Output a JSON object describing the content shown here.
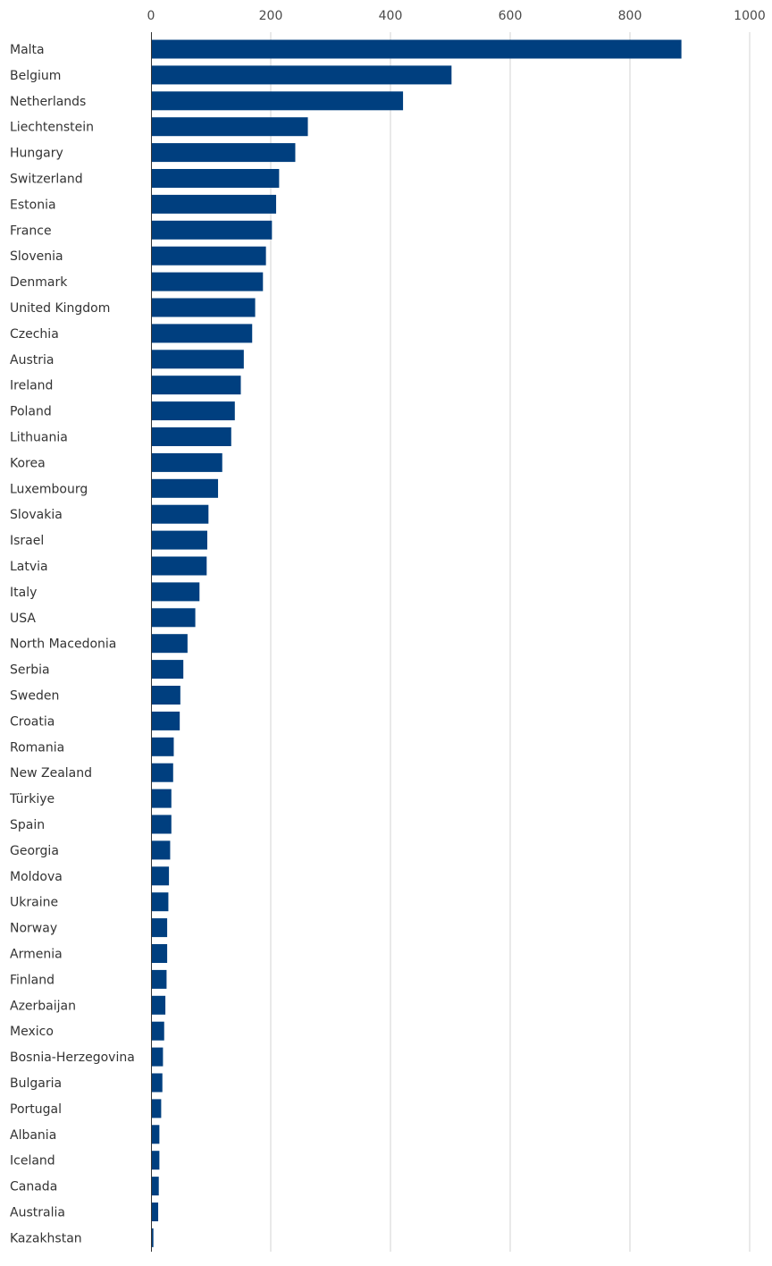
{
  "chart_data": {
    "type": "bar",
    "orientation": "horizontal",
    "title": "",
    "xlabel": "",
    "ylabel": "",
    "xlim": [
      0,
      1000
    ],
    "ticks": [
      "0",
      "200",
      "400",
      "600",
      "800",
      "1000"
    ],
    "tick_values": [
      0,
      200,
      400,
      600,
      800,
      1000
    ],
    "grid": true,
    "bar_color": "#003f7f",
    "categories": [
      "Malta",
      "Belgium",
      "Netherlands",
      "Liechtenstein",
      "Hungary",
      "Switzerland",
      "Estonia",
      "France",
      "Slovenia",
      "Denmark",
      "United Kingdom",
      "Czechia",
      "Austria",
      "Ireland",
      "Poland",
      "Lithuania",
      "Korea",
      "Luxembourg",
      "Slovakia",
      "Israel",
      "Latvia",
      "Italy",
      "USA",
      "North Macedonia",
      "Serbia",
      "Sweden",
      "Croatia",
      "Romania",
      "New Zealand",
      "Türkiye",
      "Spain",
      "Georgia",
      "Moldova",
      "Ukraine",
      "Norway",
      "Armenia",
      "Finland",
      "Azerbaijan",
      "Mexico",
      "Bosnia-Herzegovina",
      "Bulgaria",
      "Portugal",
      "Albania",
      "Iceland",
      "Canada",
      "Australia",
      "Kazakhstan"
    ],
    "values": [
      886,
      502,
      421,
      262,
      241,
      214,
      209,
      202,
      192,
      187,
      174,
      169,
      155,
      150,
      140,
      134,
      119,
      112,
      96,
      94,
      93,
      81,
      74,
      61,
      54,
      49,
      48,
      38,
      37,
      34,
      34,
      32,
      30,
      29,
      27,
      27,
      26,
      24,
      22,
      20,
      19,
      17,
      14,
      14,
      13,
      12,
      4
    ]
  }
}
